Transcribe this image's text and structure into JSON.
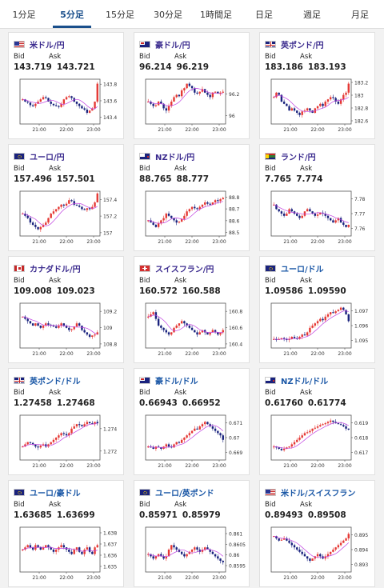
{
  "tabs": [
    {
      "label": "1分足",
      "active": false
    },
    {
      "label": "5分足",
      "active": true
    },
    {
      "label": "15分足",
      "active": false
    },
    {
      "label": "30分足",
      "active": false
    },
    {
      "label": "1時間足",
      "active": false
    },
    {
      "label": "日足",
      "active": false
    },
    {
      "label": "週足",
      "active": false
    },
    {
      "label": "月足",
      "active": false
    }
  ],
  "labels": {
    "bid": "Bid",
    "ask": "Ask"
  },
  "colors": {
    "up": "#e53935",
    "down": "#1a237e",
    "ma": "#c040e0",
    "accent": "#1a4f8b"
  },
  "cards": [
    {
      "pair": "米ドル/円",
      "flag": "us",
      "bid": "143.719",
      "ask": "143.721",
      "nameColor": "purple"
    },
    {
      "pair": "豪ドル/円",
      "flag": "au",
      "bid": "96.214",
      "ask": "96.219",
      "nameColor": "purple"
    },
    {
      "pair": "英ポンド/円",
      "flag": "uk",
      "bid": "183.186",
      "ask": "183.193",
      "nameColor": "purple"
    },
    {
      "pair": "ユーロ/円",
      "flag": "eu",
      "bid": "157.496",
      "ask": "157.501",
      "nameColor": "purple"
    },
    {
      "pair": "NZドル/円",
      "flag": "nz",
      "bid": "88.765",
      "ask": "88.777",
      "nameColor": "purple"
    },
    {
      "pair": "ランド/円",
      "flag": "za",
      "bid": "7.765",
      "ask": "7.774",
      "nameColor": "purple"
    },
    {
      "pair": "カナダドル/円",
      "flag": "ca",
      "bid": "109.008",
      "ask": "109.023",
      "nameColor": "purple"
    },
    {
      "pair": "スイスフラン/円",
      "flag": "ch",
      "bid": "160.572",
      "ask": "160.588",
      "nameColor": "purple"
    },
    {
      "pair": "ユーロ/ドル",
      "flag": "eu",
      "bid": "1.09586",
      "ask": "1.09590",
      "nameColor": "blue"
    },
    {
      "pair": "英ポンド/ドル",
      "flag": "uk",
      "bid": "1.27458",
      "ask": "1.27468",
      "nameColor": "blue"
    },
    {
      "pair": "豪ドル/ドル",
      "flag": "au",
      "bid": "0.66943",
      "ask": "0.66952",
      "nameColor": "blue"
    },
    {
      "pair": "NZドル/ドル",
      "flag": "nz",
      "bid": "0.61760",
      "ask": "0.61774",
      "nameColor": "blue"
    },
    {
      "pair": "ユーロ/豪ドル",
      "flag": "eu",
      "bid": "1.63685",
      "ask": "1.63699",
      "nameColor": "blue"
    },
    {
      "pair": "ユーロ/英ポンド",
      "flag": "eu",
      "bid": "0.85971",
      "ask": "0.85979",
      "nameColor": "blue"
    },
    {
      "pair": "米ドル/スイスフラン",
      "flag": "us",
      "bid": "0.89493",
      "ask": "0.89508",
      "nameColor": "blue"
    }
  ],
  "chart_data": [
    {
      "type": "candlestick",
      "xticks": [
        "21:00",
        "22:00",
        "23:00"
      ],
      "yticks": [
        "143.8",
        "143.6",
        "143.4"
      ],
      "ylim": [
        143.32,
        143.86
      ],
      "last": 143.72,
      "shape": [
        0.55,
        0.5,
        0.48,
        0.42,
        0.4,
        0.45,
        0.5,
        0.55,
        0.6,
        0.58,
        0.5,
        0.45,
        0.42,
        0.4,
        0.38,
        0.45,
        0.55,
        0.6,
        0.62,
        0.58,
        0.5,
        0.45,
        0.4,
        0.35,
        0.32,
        0.25,
        0.3,
        0.35,
        0.5,
        0.9
      ]
    },
    {
      "type": "candlestick",
      "xticks": [
        "21:00",
        "22:00",
        "23:00"
      ],
      "yticks": [
        "96.2",
        "96"
      ],
      "ylim": [
        95.92,
        96.34
      ],
      "last": 96.214,
      "shape": [
        0.5,
        0.45,
        0.4,
        0.42,
        0.5,
        0.45,
        0.35,
        0.3,
        0.4,
        0.5,
        0.6,
        0.65,
        0.62,
        0.75,
        0.8,
        0.9,
        0.85,
        0.8,
        0.7,
        0.68,
        0.72,
        0.78,
        0.7,
        0.65,
        0.6,
        0.7,
        0.72,
        0.68,
        0.7,
        0.72
      ]
    },
    {
      "type": "candlestick",
      "xticks": [
        "21:00",
        "22:00",
        "23:00"
      ],
      "yticks": [
        "183.2",
        "183",
        "182.8",
        "182.6"
      ],
      "ylim": [
        182.55,
        183.25
      ],
      "last": 183.186,
      "shape": [
        0.6,
        0.7,
        0.65,
        0.5,
        0.45,
        0.4,
        0.3,
        0.35,
        0.3,
        0.25,
        0.2,
        0.28,
        0.3,
        0.35,
        0.3,
        0.25,
        0.35,
        0.4,
        0.45,
        0.4,
        0.5,
        0.55,
        0.6,
        0.58,
        0.5,
        0.45,
        0.55,
        0.65,
        0.7,
        0.9
      ]
    },
    {
      "type": "candlestick",
      "xticks": [
        "21:00",
        "22:00",
        "23:00"
      ],
      "yticks": [
        "157.4",
        "157.2",
        "157"
      ],
      "ylim": [
        156.96,
        157.5
      ],
      "last": 157.496,
      "shape": [
        0.5,
        0.45,
        0.4,
        0.3,
        0.25,
        0.2,
        0.15,
        0.2,
        0.25,
        0.3,
        0.4,
        0.5,
        0.55,
        0.6,
        0.65,
        0.7,
        0.68,
        0.72,
        0.8,
        0.78,
        0.7,
        0.68,
        0.65,
        0.6,
        0.58,
        0.62,
        0.6,
        0.65,
        0.75,
        0.95
      ]
    },
    {
      "type": "candlestick",
      "xticks": [
        "21:00",
        "22:00",
        "23:00"
      ],
      "yticks": [
        "88.8",
        "88.7",
        "88.6",
        "88.5"
      ],
      "ylim": [
        88.47,
        88.85
      ],
      "last": 88.765,
      "shape": [
        0.35,
        0.3,
        0.25,
        0.2,
        0.28,
        0.35,
        0.4,
        0.5,
        0.45,
        0.4,
        0.35,
        0.3,
        0.32,
        0.38,
        0.45,
        0.55,
        0.6,
        0.65,
        0.62,
        0.6,
        0.65,
        0.7,
        0.75,
        0.72,
        0.7,
        0.75,
        0.8,
        0.78,
        0.82,
        0.85
      ]
    },
    {
      "type": "candlestick",
      "xticks": [
        "21:00",
        "22:00",
        "23:00"
      ],
      "yticks": [
        "7.78",
        "7.77",
        "7.76"
      ],
      "ylim": [
        7.755,
        7.785
      ],
      "last": 7.765,
      "shape": [
        0.7,
        0.6,
        0.55,
        0.5,
        0.45,
        0.5,
        0.6,
        0.55,
        0.5,
        0.45,
        0.4,
        0.45,
        0.55,
        0.6,
        0.55,
        0.5,
        0.45,
        0.48,
        0.52,
        0.5,
        0.45,
        0.4,
        0.35,
        0.3,
        0.35,
        0.4,
        0.3,
        0.25,
        0.2,
        0.25
      ]
    },
    {
      "type": "candlestick",
      "xticks": [
        "21:00",
        "22:00",
        "23:00"
      ],
      "yticks": [
        "109.2",
        "109",
        "108.8"
      ],
      "ylim": [
        108.75,
        109.3
      ],
      "last": 109.008,
      "shape": [
        0.7,
        0.65,
        0.6,
        0.55,
        0.5,
        0.55,
        0.5,
        0.45,
        0.5,
        0.55,
        0.52,
        0.5,
        0.48,
        0.45,
        0.5,
        0.55,
        0.5,
        0.45,
        0.4,
        0.42,
        0.48,
        0.55,
        0.5,
        0.4,
        0.35,
        0.3,
        0.25,
        0.28,
        0.3,
        0.35
      ]
    },
    {
      "type": "candlestick",
      "xticks": [
        "21:00",
        "22:00",
        "23:00"
      ],
      "yticks": [
        "160.8",
        "160.6",
        "160.4"
      ],
      "ylim": [
        160.35,
        160.9
      ],
      "last": 160.572,
      "shape": [
        0.7,
        0.75,
        0.8,
        0.65,
        0.5,
        0.45,
        0.4,
        0.35,
        0.3,
        0.35,
        0.45,
        0.5,
        0.55,
        0.6,
        0.55,
        0.5,
        0.45,
        0.4,
        0.35,
        0.3,
        0.35,
        0.4,
        0.35,
        0.3,
        0.35,
        0.4,
        0.35,
        0.3,
        0.35,
        0.4
      ]
    },
    {
      "type": "candlestick",
      "xticks": [
        "21:00",
        "22:00",
        "23:00"
      ],
      "yticks": [
        "1.097",
        "1.096",
        "1.095"
      ],
      "ylim": [
        1.0945,
        1.0975
      ],
      "last": 1.09586,
      "shape": [
        0.2,
        0.18,
        0.2,
        0.22,
        0.2,
        0.18,
        0.2,
        0.25,
        0.22,
        0.2,
        0.25,
        0.3,
        0.28,
        0.35,
        0.45,
        0.5,
        0.55,
        0.6,
        0.65,
        0.62,
        0.7,
        0.75,
        0.8,
        0.78,
        0.82,
        0.85,
        0.9,
        0.85,
        0.75,
        0.6
      ]
    },
    {
      "type": "candlestick",
      "xticks": [
        "21:00",
        "22:00",
        "23:00"
      ],
      "yticks": [
        "1.274",
        "1.272"
      ],
      "ylim": [
        1.2712,
        1.2752
      ],
      "last": 1.27458,
      "shape": [
        0.3,
        0.35,
        0.4,
        0.38,
        0.35,
        0.3,
        0.28,
        0.32,
        0.35,
        0.3,
        0.35,
        0.4,
        0.45,
        0.5,
        0.55,
        0.6,
        0.58,
        0.55,
        0.6,
        0.7,
        0.75,
        0.8,
        0.78,
        0.75,
        0.8,
        0.85,
        0.82,
        0.8,
        0.85,
        0.82
      ]
    },
    {
      "type": "candlestick",
      "xticks": [
        "21:00",
        "22:00",
        "23:00"
      ],
      "yticks": [
        "0.671",
        "0.67",
        "0.669"
      ],
      "ylim": [
        0.6685,
        0.6715
      ],
      "last": 0.66943,
      "shape": [
        0.3,
        0.28,
        0.25,
        0.3,
        0.28,
        0.25,
        0.3,
        0.35,
        0.3,
        0.28,
        0.35,
        0.4,
        0.38,
        0.45,
        0.5,
        0.55,
        0.6,
        0.65,
        0.7,
        0.68,
        0.75,
        0.8,
        0.85,
        0.8,
        0.75,
        0.7,
        0.65,
        0.6,
        0.55,
        0.45
      ]
    },
    {
      "type": "candlestick",
      "xticks": [
        "21:00",
        "22:00",
        "23:00"
      ],
      "yticks": [
        "0.619",
        "0.618",
        "0.617"
      ],
      "ylim": [
        0.6165,
        0.6195
      ],
      "last": 0.6176,
      "shape": [
        0.3,
        0.28,
        0.25,
        0.22,
        0.25,
        0.28,
        0.3,
        0.35,
        0.4,
        0.45,
        0.5,
        0.55,
        0.6,
        0.62,
        0.65,
        0.7,
        0.72,
        0.75,
        0.78,
        0.8,
        0.82,
        0.85,
        0.88,
        0.85,
        0.82,
        0.8,
        0.78,
        0.75,
        0.7,
        0.68
      ]
    },
    {
      "type": "candlestick",
      "xticks": [
        "21:00",
        "22:00",
        "23:00"
      ],
      "yticks": [
        "1.638",
        "1.637",
        "1.636",
        "1.635"
      ],
      "ylim": [
        1.6345,
        1.6385
      ],
      "last": 1.63685,
      "shape": [
        0.5,
        0.55,
        0.6,
        0.55,
        0.5,
        0.6,
        0.55,
        0.5,
        0.55,
        0.6,
        0.55,
        0.5,
        0.45,
        0.5,
        0.55,
        0.6,
        0.55,
        0.5,
        0.45,
        0.4,
        0.5,
        0.55,
        0.45,
        0.4,
        0.5,
        0.55,
        0.45,
        0.4,
        0.55,
        0.6
      ]
    },
    {
      "type": "candlestick",
      "xticks": [
        "21:00",
        "22:00",
        "23:00"
      ],
      "yticks": [
        "0.861",
        "0.8605",
        "0.86",
        "0.8595"
      ],
      "ylim": [
        0.8592,
        0.8613
      ],
      "last": 0.85971,
      "shape": [
        0.4,
        0.35,
        0.3,
        0.35,
        0.4,
        0.35,
        0.3,
        0.35,
        0.5,
        0.6,
        0.55,
        0.5,
        0.45,
        0.4,
        0.35,
        0.4,
        0.45,
        0.5,
        0.55,
        0.5,
        0.45,
        0.5,
        0.55,
        0.5,
        0.45,
        0.4,
        0.35,
        0.3,
        0.25,
        0.22
      ]
    },
    {
      "type": "candlestick",
      "xticks": [
        "21:00",
        "22:00",
        "23:00"
      ],
      "yticks": [
        "0.895",
        "0.894",
        "0.893"
      ],
      "ylim": [
        0.8925,
        0.8955
      ],
      "last": 0.89493,
      "shape": [
        0.8,
        0.75,
        0.7,
        0.72,
        0.75,
        0.7,
        0.65,
        0.6,
        0.55,
        0.5,
        0.45,
        0.4,
        0.35,
        0.3,
        0.25,
        0.3,
        0.35,
        0.4,
        0.35,
        0.3,
        0.35,
        0.4,
        0.45,
        0.5,
        0.55,
        0.6,
        0.65,
        0.7,
        0.75,
        0.85
      ]
    }
  ]
}
